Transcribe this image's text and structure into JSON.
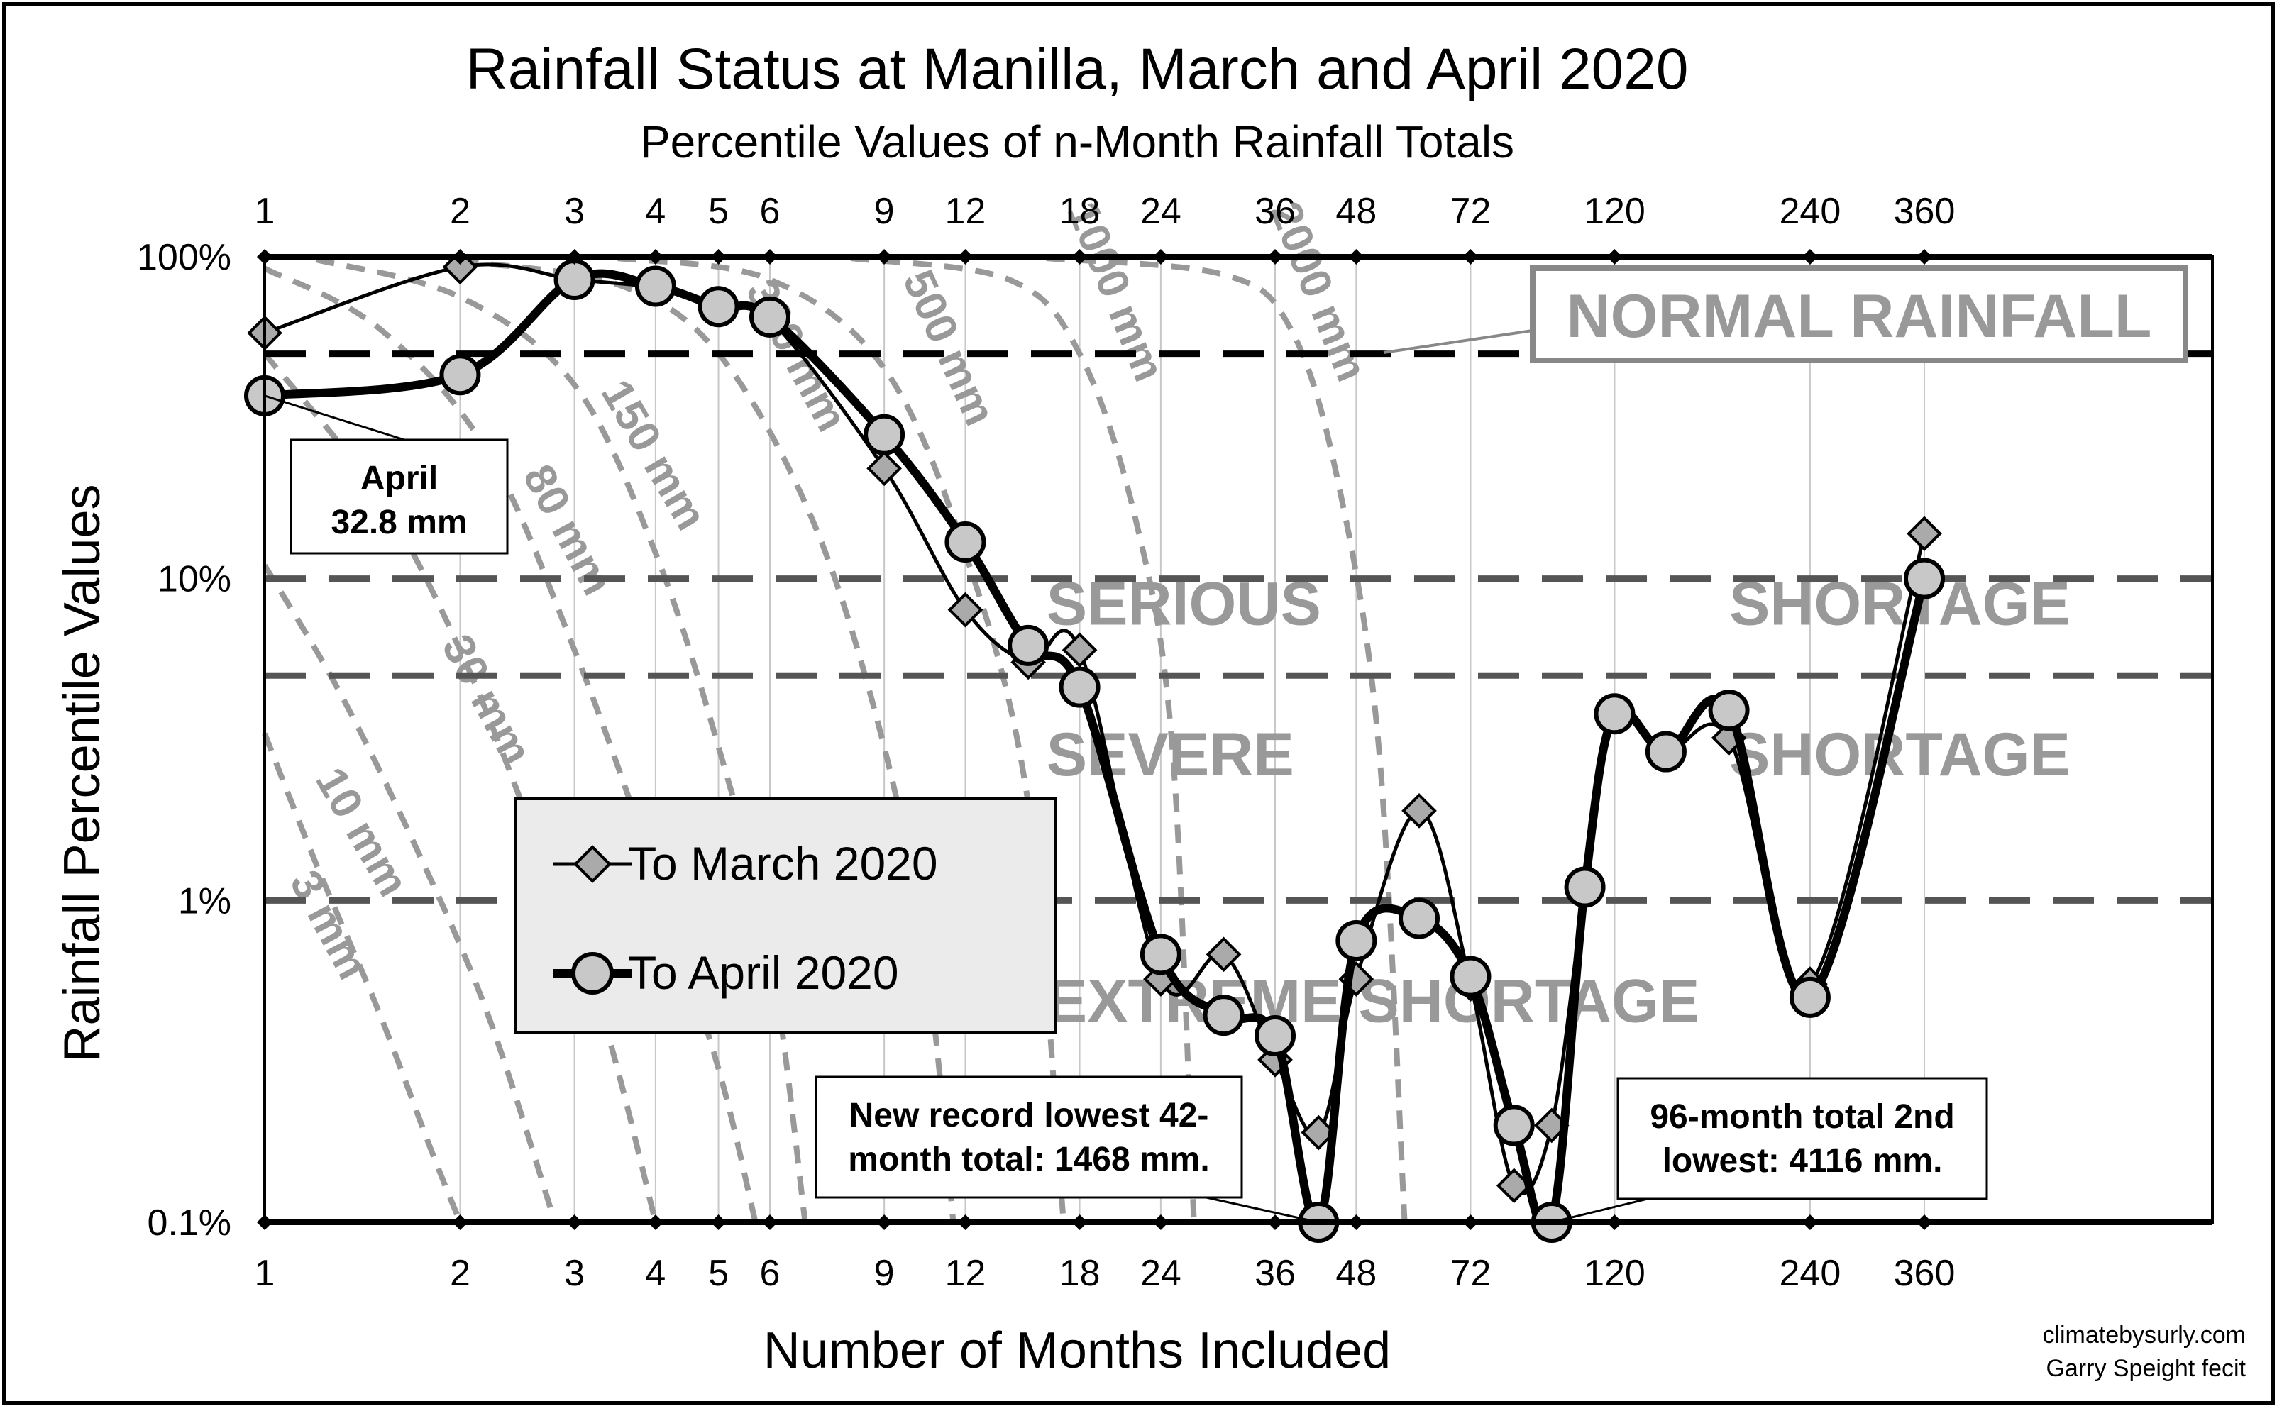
{
  "chart_data": {
    "type": "line",
    "title": "Rainfall Status at Manilla, March and April 2020",
    "subtitle": "Percentile Values of n-Month Rainfall Totals",
    "xlabel": "Number of Months Included",
    "ylabel": "Rainfall Percentile Values",
    "x_scale": "log",
    "y_scale": "log",
    "xlim": [
      1,
      1000
    ],
    "ylim": [
      0.1,
      100
    ],
    "x_ticks": [
      1,
      2,
      3,
      4,
      5,
      6,
      9,
      12,
      18,
      24,
      36,
      48,
      72,
      120,
      240,
      360
    ],
    "y_ticks": [
      {
        "value": 100,
        "label": "100%"
      },
      {
        "value": 10,
        "label": "10%"
      },
      {
        "value": 1,
        "label": "1%"
      },
      {
        "value": 0.1,
        "label": "0.1%"
      }
    ],
    "grid": true,
    "series": [
      {
        "name": "To March 2020",
        "marker": "diamond",
        "color": "#aaaaaa",
        "x": [
          1,
          2,
          3,
          4,
          5,
          6,
          9,
          12,
          15,
          18,
          24,
          30,
          36,
          42,
          48,
          60,
          72,
          84,
          96,
          108,
          120,
          144,
          180,
          240,
          360
        ],
        "y": [
          58,
          93,
          85,
          80,
          70,
          64,
          22,
          8,
          5.5,
          6,
          0.57,
          0.68,
          0.32,
          0.19,
          0.57,
          1.9,
          0.55,
          0.13,
          0.2,
          1.1,
          3.8,
          2.9,
          3.2,
          0.55,
          13.8
        ]
      },
      {
        "name": "To April 2020",
        "marker": "circle",
        "color": "#c8c8c8",
        "x": [
          1,
          2,
          3,
          4,
          5,
          6,
          9,
          12,
          15,
          18,
          24,
          30,
          36,
          42,
          48,
          60,
          72,
          84,
          96,
          108,
          120,
          144,
          180,
          240,
          360
        ],
        "y": [
          37,
          43,
          85,
          81,
          70,
          65,
          28,
          13,
          6.2,
          4.6,
          0.68,
          0.44,
          0.38,
          0.1,
          0.75,
          0.88,
          0.58,
          0.2,
          0.1,
          1.1,
          3.8,
          2.9,
          3.9,
          0.5,
          10
        ]
      }
    ],
    "reference_lines": [
      {
        "value": 50,
        "label": "NORMAL RAINFALL"
      },
      {
        "value": 10,
        "label": "SERIOUS SHORTAGE"
      },
      {
        "value": 5,
        "label": "SEVERE SHORTAGE"
      },
      {
        "value": 1,
        "label": "EXTREME SHORTAGE"
      }
    ],
    "zone_labels": [
      {
        "text": "SERIOUS",
        "x": 16,
        "y": 7.2
      },
      {
        "text": "SHORTAGE",
        "x": 330,
        "y": 7.2
      },
      {
        "text": "SEVERE",
        "x": 16,
        "y": 2.45
      },
      {
        "text": "SHORTAGE",
        "x": 330,
        "y": 2.45
      },
      {
        "text": "EXTREME SHORTAGE",
        "x": 16,
        "y": 0.42
      }
    ],
    "isohyets": [
      {
        "label": "3 mm",
        "points": [
          [
            1,
            3.3
          ],
          [
            1.2,
            1.3
          ],
          [
            1.5,
            0.45
          ],
          [
            1.8,
            0.17
          ],
          [
            2,
            0.1
          ]
        ],
        "label_at": [
          1.2,
          0.8
        ],
        "angle": 62
      },
      {
        "label": "10 mm",
        "points": [
          [
            1,
            11
          ],
          [
            1.3,
            4.5
          ],
          [
            1.7,
            1.5
          ],
          [
            2.2,
            0.45
          ],
          [
            2.8,
            0.1
          ]
        ],
        "label_at": [
          1.35,
          1.55
        ],
        "angle": 60
      },
      {
        "label": "30 mm",
        "points": [
          [
            1,
            50
          ],
          [
            1.5,
            18
          ],
          [
            2,
            6
          ],
          [
            2.6,
            1.6
          ],
          [
            3.3,
            0.45
          ],
          [
            4,
            0.1
          ]
        ],
        "label_at": [
          2.1,
          4.0
        ],
        "angle": 62
      },
      {
        "label": "80 mm",
        "points": [
          [
            1,
            92
          ],
          [
            1.5,
            60
          ],
          [
            2.2,
            25
          ],
          [
            3,
            6
          ],
          [
            4,
            1.2
          ],
          [
            5,
            0.3
          ],
          [
            5.7,
            0.1
          ]
        ],
        "label_at": [
          2.8,
          13.5
        ],
        "angle": 62
      },
      {
        "label": "150 mm",
        "points": [
          [
            1.2,
            98
          ],
          [
            2,
            75
          ],
          [
            3,
            40
          ],
          [
            4,
            12
          ],
          [
            5,
            3
          ],
          [
            6,
            0.7
          ],
          [
            6.8,
            0.1
          ]
        ],
        "label_at": [
          3.8,
          23
        ],
        "angle": 60
      },
      {
        "label": "300 mm",
        "points": [
          [
            2,
            97
          ],
          [
            3.5,
            82
          ],
          [
            5,
            50
          ],
          [
            7,
            15
          ],
          [
            9,
            3
          ],
          [
            10.5,
            0.6
          ],
          [
            11.5,
            0.1
          ]
        ],
        "label_at": [
          6.3,
          47
        ],
        "angle": 62
      },
      {
        "label": "500 mm",
        "points": [
          [
            3.5,
            99
          ],
          [
            6,
            85
          ],
          [
            9,
            45
          ],
          [
            12,
            12
          ],
          [
            15,
            2
          ],
          [
            17,
            0.1
          ]
        ],
        "label_at": [
          10.8,
          50
        ],
        "angle": 66
      },
      {
        "label": "1000 mm",
        "points": [
          [
            8,
            99
          ],
          [
            14,
            85
          ],
          [
            18,
            50
          ],
          [
            22,
            15
          ],
          [
            25,
            3
          ],
          [
            27,
            0.1
          ]
        ],
        "label_at": [
          19.5,
          75
        ],
        "angle": 68
      },
      {
        "label": "2000 mm",
        "points": [
          [
            16,
            99
          ],
          [
            30,
            88
          ],
          [
            38,
            60
          ],
          [
            45,
            20
          ],
          [
            52,
            3
          ],
          [
            57,
            0.1
          ]
        ],
        "label_at": [
          40,
          75
        ],
        "angle": 68
      }
    ],
    "annotations": [
      {
        "text": "April 32.8 mm",
        "lines": [
          "April",
          "32.8 mm"
        ],
        "point": [
          1,
          37
        ]
      },
      {
        "text": "New record lowest 42-month total: 1468 mm.",
        "lines": [
          "New record lowest 42-",
          "month total: 1468 mm."
        ],
        "point": [
          42,
          0.1
        ]
      },
      {
        "text": "96-month total 2nd lowest: 4116 mm.",
        "lines": [
          "96-month total 2nd",
          "lowest: 4116 mm."
        ],
        "point": [
          96,
          0.1
        ]
      }
    ],
    "legend": {
      "position": "center-left",
      "entries": [
        "To March 2020",
        "To April 2020"
      ]
    }
  },
  "credit": {
    "line1": "climatebysurly.com",
    "line2": "Garry Speight fecit"
  }
}
